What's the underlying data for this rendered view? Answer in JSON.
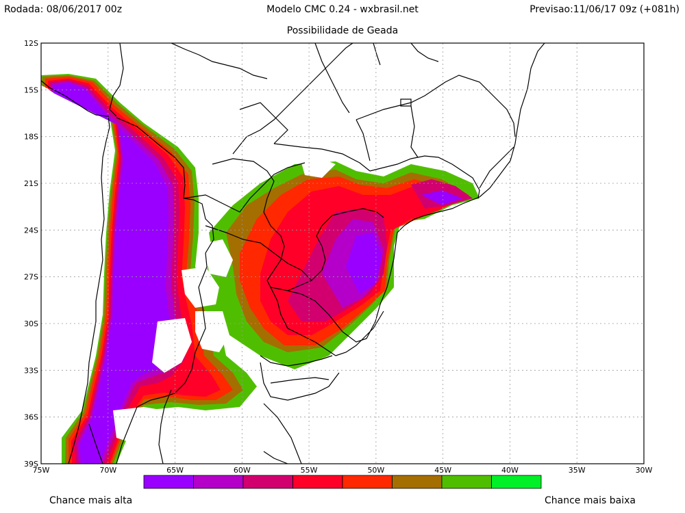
{
  "header": {
    "run": "Rodada: 08/06/2017 00z",
    "model": "Modelo CMC 0.24 - wxbrasil.net",
    "forecast": "Previsao:11/06/17 09z (+081h)"
  },
  "map": {
    "title": "Possibilidade de Geada",
    "lat_labels": [
      "12S",
      "15S",
      "18S",
      "21S",
      "24S",
      "27S",
      "30S",
      "33S",
      "36S",
      "39S"
    ],
    "lon_labels": [
      "75W",
      "70W",
      "65W",
      "60W",
      "55W",
      "50W",
      "45W",
      "40W",
      "35W",
      "30W"
    ]
  },
  "legend": {
    "colors": [
      "#9a00ff",
      "#b400c8",
      "#d2006e",
      "#ff0028",
      "#ff2800",
      "#a56e00",
      "#50be00",
      "#00f028"
    ],
    "low_label": "Chance mais alta",
    "high_label": "Chance mais baixa"
  }
}
